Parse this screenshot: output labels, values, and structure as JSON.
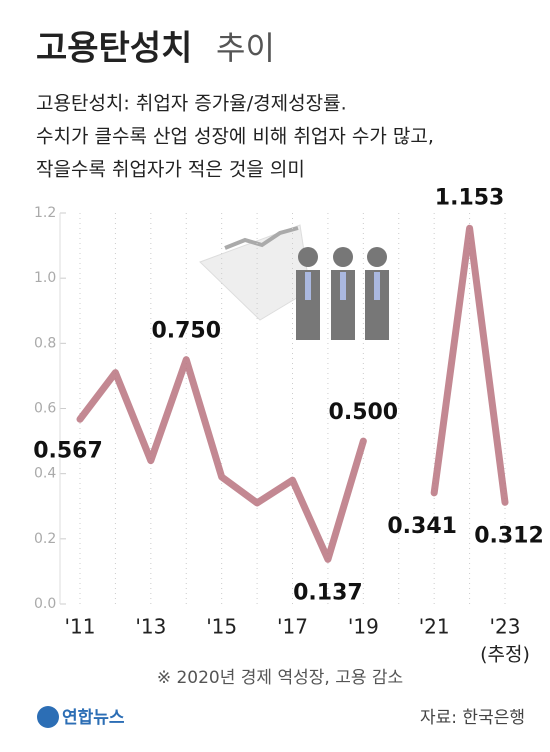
{
  "title_bold": "고용탄성치",
  "title_light": "추이",
  "subtitle": [
    "고용탄성치: 취업자 증가율/경제성장률.",
    "수치가 클수록 산업 성장에 비해 취업자 수가 많고,",
    "작을수록 취업자가 적은 것을 의미"
  ],
  "chart_data": {
    "type": "line",
    "categories": [
      "'11",
      null,
      "'13",
      null,
      "'15",
      null,
      "'17",
      null,
      "'19",
      null,
      "'21",
      null,
      "'23"
    ],
    "series": [
      {
        "color": "#b8737f",
        "values": [
          0.567,
          0.71,
          0.44,
          0.75,
          0.39,
          0.31,
          0.38,
          0.137,
          0.5,
          null,
          0.341,
          1.153,
          0.312
        ],
        "value_labels": [
          "0.567",
          null,
          null,
          "0.750",
          null,
          null,
          null,
          "0.137",
          "0.500",
          null,
          "0.341",
          "1.153",
          "0.312"
        ]
      }
    ],
    "ylim": [
      0,
      1.2
    ],
    "yticks": [
      {
        "value": 0,
        "label": "0.0"
      },
      0.2,
      0.4,
      0.6,
      0.8,
      {
        "value": 1,
        "label": "1.0"
      },
      1.2
    ],
    "annotations": [
      "(추정)",
      "※ 2020년 경제 역성장, 고용 감소"
    ]
  },
  "logo": "연합뉴스",
  "source": "자료: 한국은행"
}
